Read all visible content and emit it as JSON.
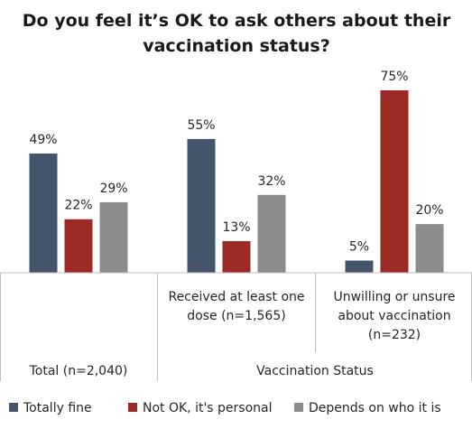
{
  "chart_data": {
    "type": "bar",
    "title": [
      "Do you feel it’s OK to ask others about their",
      "vaccination status?"
    ],
    "categories": [
      {
        "lines": [
          "Total (n=2,040)"
        ]
      },
      {
        "lines": [
          "Received at least one",
          "dose (n=1,565)"
        ]
      },
      {
        "lines": [
          "Unwilling or unsure",
          "about vaccination",
          "(n=232)"
        ]
      }
    ],
    "group_label": "Vaccination Status",
    "series": [
      {
        "name": "Totally fine",
        "color": "#44546a",
        "values": [
          49,
          55,
          5
        ],
        "labels": [
          "49%",
          "55%",
          "5%"
        ]
      },
      {
        "name": "Not OK, it's personal",
        "color": "#9b2a25",
        "values": [
          22,
          13,
          75
        ],
        "labels": [
          "22%",
          "13%",
          "75%"
        ]
      },
      {
        "name": "Depends on who it is",
        "color": "#8c8c8c",
        "values": [
          29,
          32,
          20
        ],
        "labels": [
          "29%",
          "32%",
          "20%"
        ]
      }
    ],
    "ylim": [
      0,
      75
    ],
    "grid": false,
    "legend_position": "bottom"
  }
}
